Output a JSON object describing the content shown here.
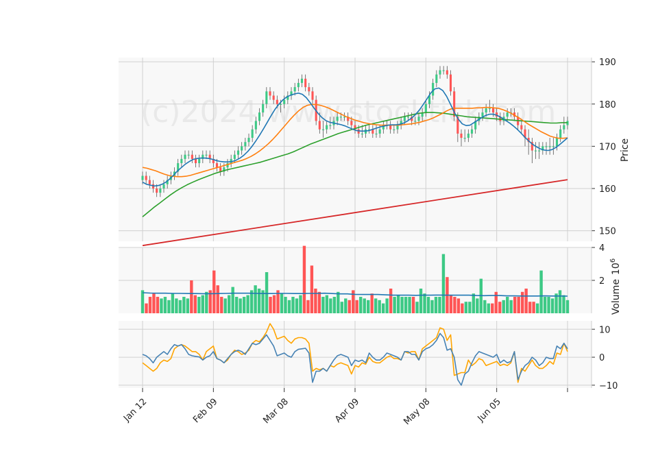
{
  "chart_data": {
    "type": "candlestick",
    "watermark": "(c)2024 www.stocktick.com",
    "colors": {
      "up": "#3dc985",
      "down": "#ff5555",
      "ma_short": "#1f77b4",
      "ma_mid": "#ff7f0e",
      "ma_long": "#2ca02c",
      "ma_200": "#d62728",
      "volume_ma": "#1f77b4",
      "osc_1": "#4682b4",
      "osc_2": "#ffa500",
      "panel_bg": "#f8f8f8",
      "grid": "#d0d0d0"
    },
    "x_axis": {
      "tick_labels": [
        "Jan 12",
        "Feb 09",
        "Mar 08",
        "Apr 09",
        "May 08",
        "Jun 05",
        ""
      ],
      "tick_index": [
        0,
        20,
        40,
        60,
        80,
        100,
        120
      ]
    },
    "price_panel": {
      "ylabel": "Price",
      "ylim": [
        147.5,
        191
      ],
      "yticks": [
        150,
        160,
        170,
        180,
        190
      ],
      "close": [
        163,
        162,
        161,
        160,
        159,
        160,
        161,
        162,
        163,
        164,
        166,
        167,
        168,
        168,
        167,
        166,
        167,
        168,
        168,
        167,
        166,
        165,
        164,
        165,
        166,
        167,
        168,
        169,
        170,
        171,
        172,
        174,
        176,
        178,
        180,
        183,
        182,
        181,
        180,
        180,
        181,
        182,
        183,
        184,
        185,
        186,
        184,
        183,
        181,
        176,
        174,
        174,
        175,
        175,
        176,
        177,
        177,
        177,
        176,
        175,
        174,
        173,
        173,
        174,
        174,
        173,
        173,
        174,
        175,
        175,
        174,
        174,
        175,
        176,
        177,
        177,
        176,
        176,
        177,
        178,
        180,
        182,
        185,
        187,
        188,
        188,
        187,
        183,
        177,
        173,
        172,
        172,
        173,
        174,
        176,
        177,
        178,
        179,
        179,
        178,
        177,
        176,
        177,
        178,
        178,
        177,
        175,
        174,
        172,
        171,
        169,
        169,
        169,
        170,
        170,
        170,
        170,
        172,
        174,
        175,
        176
      ],
      "open": [
        162,
        163,
        162,
        161,
        160,
        159,
        160,
        161,
        162,
        163,
        164,
        166,
        167,
        168,
        168,
        167,
        166,
        167,
        168,
        168,
        167,
        166,
        165,
        164,
        165,
        166,
        167,
        168,
        169,
        170,
        171,
        172,
        174,
        176,
        178,
        180,
        183,
        182,
        181,
        180,
        180,
        181,
        182,
        183,
        184,
        185,
        186,
        184,
        183,
        181,
        176,
        174,
        174,
        175,
        175,
        176,
        177,
        177,
        177,
        176,
        175,
        174,
        173,
        173,
        174,
        174,
        173,
        173,
        174,
        175,
        175,
        174,
        174,
        175,
        176,
        177,
        177,
        176,
        176,
        177,
        178,
        180,
        182,
        185,
        187,
        188,
        188,
        187,
        183,
        177,
        173,
        172,
        172,
        173,
        174,
        176,
        177,
        178,
        179,
        179,
        178,
        177,
        176,
        177,
        178,
        178,
        177,
        175,
        174,
        172,
        171,
        169,
        169,
        169,
        170,
        170,
        170,
        170,
        172,
        174,
        175
      ],
      "high": [
        164,
        164,
        163,
        162,
        161,
        161,
        162,
        163,
        164,
        165,
        167,
        168,
        169,
        169,
        169,
        168,
        168,
        169,
        169,
        169,
        168,
        167,
        166,
        166,
        167,
        168,
        169,
        170,
        171,
        172,
        173,
        175,
        177,
        179,
        181,
        184,
        184,
        183,
        182,
        181,
        182,
        183,
        184,
        185,
        186,
        187,
        187,
        185,
        184,
        182,
        178,
        176,
        176,
        177,
        177,
        178,
        178,
        178,
        178,
        177,
        176,
        175,
        175,
        175,
        175,
        175,
        175,
        175,
        176,
        176,
        176,
        175,
        176,
        177,
        178,
        178,
        178,
        177,
        178,
        179,
        181,
        183,
        186,
        188,
        189,
        189,
        189,
        188,
        184,
        178,
        174,
        174,
        174,
        175,
        177,
        178,
        179,
        180,
        181,
        180,
        179,
        178,
        178,
        179,
        179,
        179,
        178,
        176,
        175,
        174,
        172,
        171,
        171,
        171,
        171,
        172,
        172,
        173,
        175,
        177,
        177
      ],
      "low": [
        161,
        161,
        160,
        159,
        158,
        158,
        159,
        160,
        161,
        162,
        163,
        165,
        166,
        167,
        166,
        165,
        165,
        166,
        167,
        166,
        165,
        164,
        163,
        163,
        164,
        165,
        166,
        167,
        168,
        169,
        170,
        171,
        173,
        175,
        177,
        179,
        181,
        180,
        179,
        178,
        179,
        180,
        181,
        182,
        183,
        184,
        183,
        182,
        180,
        175,
        173,
        172,
        173,
        174,
        174,
        175,
        176,
        176,
        175,
        174,
        173,
        172,
        172,
        172,
        173,
        172,
        172,
        172,
        173,
        174,
        173,
        173,
        173,
        174,
        175,
        176,
        175,
        175,
        175,
        176,
        177,
        179,
        181,
        184,
        186,
        187,
        186,
        182,
        176,
        171,
        170,
        171,
        171,
        172,
        173,
        175,
        176,
        177,
        178,
        177,
        176,
        175,
        175,
        176,
        177,
        176,
        174,
        173,
        170,
        168,
        166,
        167,
        167,
        168,
        168,
        168,
        168,
        169,
        171,
        173,
        174
      ],
      "ma_short": [
        161.5,
        161,
        160.8,
        160.6,
        160.7,
        161,
        161.5,
        162.3,
        163.2,
        164.2,
        165,
        165.8,
        166.4,
        166.9,
        167.1,
        167.2,
        167.2,
        167.1,
        166.9,
        166.6,
        166.4,
        166.3,
        166.3,
        166.4,
        166.7,
        167.2,
        167.9,
        168.8,
        169.9,
        171.2,
        172.6,
        174.1,
        175.7,
        177.3,
        178.8,
        180,
        181,
        181.7,
        182.1,
        182.4,
        182.6,
        182.3,
        181.5,
        180.3,
        179,
        177.8,
        176.8,
        176.1,
        175.7,
        175.5,
        175.3,
        175.1,
        174.8,
        174.4,
        174,
        173.7,
        173.6,
        173.6,
        173.7,
        174,
        174.3,
        174.6,
        174.8,
        175,
        175.1,
        175.1,
        175.2,
        175.5,
        176,
        176.7,
        177.5,
        178.6,
        179.9,
        181.3,
        182.7,
        183.6,
        183.8,
        183.2,
        181.8,
        179.9,
        178,
        176.4,
        175.3,
        174.9,
        175,
        175.6,
        176.2,
        176.8,
        177.3,
        177.6,
        177.6,
        177.3,
        176.8,
        176.2,
        175.6,
        174.9,
        174.1,
        173.2,
        172.2,
        171.3,
        170.5,
        169.9,
        169.4,
        169.1,
        169,
        169.2,
        169.7,
        170.4,
        171.2,
        172
      ],
      "ma_mid": [
        165,
        164.8,
        164.5,
        164.2,
        163.8,
        163.4,
        163.1,
        162.9,
        162.8,
        162.8,
        162.9,
        163.1,
        163.4,
        163.7,
        164,
        164.3,
        164.6,
        164.9,
        165.2,
        165.5,
        165.8,
        166.1,
        166.4,
        166.7,
        167.1,
        167.6,
        168.2,
        168.9,
        169.7,
        170.6,
        171.6,
        172.7,
        173.9,
        175.1,
        176.3,
        177.4,
        178.4,
        179.2,
        179.7,
        179.9,
        179.9,
        179.7,
        179.4,
        179,
        178.5,
        178,
        177.5,
        177,
        176.6,
        176.2,
        175.9,
        175.6,
        175.4,
        175.2,
        175.1,
        175,
        175,
        175,
        175,
        175,
        175.1,
        175.2,
        175.3,
        175.5,
        175.7,
        176,
        176.3,
        176.7,
        177.2,
        177.7,
        178.3,
        178.8,
        179,
        179,
        179,
        179,
        179,
        179.1,
        179.1,
        179.2,
        179.2,
        179.1,
        179,
        178.7,
        178.3,
        177.8,
        177.2,
        176.6,
        175.9,
        175.2,
        174.6,
        174,
        173.4,
        172.9,
        172.4,
        172.1,
        171.9,
        171.9,
        172
      ],
      "ma_long": [
        153.3,
        154.4,
        155.5,
        156.5,
        157.5,
        158.5,
        159.4,
        160.2,
        160.9,
        161.5,
        162.1,
        162.6,
        163.1,
        163.6,
        164,
        164.4,
        164.7,
        165,
        165.3,
        165.6,
        165.9,
        166.2,
        166.6,
        167,
        167.4,
        167.8,
        168.2,
        168.7,
        169.3,
        169.9,
        170.5,
        171,
        171.5,
        172,
        172.5,
        173,
        173.4,
        173.8,
        174.2,
        174.6,
        175,
        175.3,
        175.6,
        175.9,
        176.2,
        176.5,
        176.8,
        177.1,
        177.4,
        177.7,
        177.9,
        178,
        178,
        177.9,
        177.8,
        177.6,
        177.4,
        177.2,
        177,
        176.9,
        176.8,
        176.7,
        176.6,
        176.5,
        176.4,
        176.3,
        176.2,
        176.1,
        176,
        175.9,
        175.8,
        175.7,
        175.6,
        175.5,
        175.5,
        175.6,
        175.6
      ],
      "ma_200": [
        146.5,
        162.1
      ]
    },
    "volume_panel": {
      "ylabel": "Volume",
      "unit_label": "10",
      "unit_exp": "6",
      "ylim": [
        0,
        4
      ],
      "yticks": [
        2,
        4
      ],
      "volume": [
        1.4,
        0.6,
        1.0,
        1.2,
        1.0,
        0.9,
        1.0,
        0.8,
        1.2,
        0.9,
        0.8,
        1.0,
        0.9,
        2.0,
        1.1,
        1.0,
        1.1,
        1.3,
        1.4,
        2.6,
        1.7,
        1.0,
        0.9,
        1.1,
        1.6,
        1.0,
        0.9,
        1.0,
        1.1,
        1.4,
        1.7,
        1.5,
        1.4,
        2.5,
        1.0,
        1.1,
        1.4,
        1.2,
        1.0,
        0.8,
        1.0,
        0.9,
        1.1,
        4.1,
        0.8,
        2.9,
        1.5,
        1.3,
        1.0,
        1.1,
        0.9,
        1.0,
        1.3,
        0.7,
        0.9,
        0.8,
        1.4,
        0.8,
        1.0,
        0.9,
        0.8,
        1.2,
        0.9,
        0.8,
        0.6,
        0.9,
        1.5,
        1.0,
        1.1,
        1.0,
        1.0,
        1.0,
        1.0,
        0.7,
        1.5,
        1.2,
        1.0,
        0.8,
        1.0,
        1.0,
        3.6,
        2.2,
        1.1,
        1.0,
        0.9,
        0.6,
        0.7,
        0.7,
        1.2,
        0.9,
        2.1,
        0.8,
        0.6,
        0.6,
        1.3,
        0.7,
        0.8,
        1.0,
        0.8,
        1.0,
        1.0,
        1.3,
        1.5,
        0.7,
        0.7,
        0.6,
        2.6,
        1.0,
        1.0,
        0.9,
        1.2,
        1.4,
        1.1,
        0.8
      ],
      "volume_ma": [
        1.25,
        1.23,
        1.22,
        1.22,
        1.21,
        1.21,
        1.2,
        1.2,
        1.19,
        1.19,
        1.2,
        1.21,
        1.22,
        1.22,
        1.22,
        1.21,
        1.2,
        1.2,
        1.21,
        1.21,
        1.2,
        1.2,
        1.21,
        1.21,
        1.22,
        1.2,
        1.18,
        1.18,
        1.15,
        1.14,
        1.14,
        1.14,
        1.12,
        1.1,
        1.1,
        1.1,
        1.09,
        1.1,
        1.1,
        1.11,
        1.1,
        1.1,
        1.1,
        1.1,
        1.08,
        1.07,
        1.08,
        1.08,
        1.06,
        1.06,
        1.05,
        1.05,
        1.05,
        1.06,
        1.05,
        1.05,
        1.04
      ]
    },
    "osc_panel": {
      "ylim": [
        -11,
        13
      ],
      "yticks": [
        -10,
        0,
        10
      ],
      "series_1": [
        1,
        0.5,
        -0.5,
        -2,
        0,
        1,
        2,
        1,
        3,
        4.5,
        4,
        4.5,
        3,
        1,
        0.5,
        0.3,
        0.1,
        -1,
        0,
        0.5,
        2,
        -0.5,
        -1,
        -2,
        -0.5,
        1,
        2,
        2.5,
        2,
        1,
        3,
        5,
        4.5,
        5,
        6.5,
        8,
        6,
        4,
        0.5,
        1,
        1.5,
        0.5,
        0,
        2,
        2.8,
        3,
        3.2,
        1.5,
        -9,
        -5,
        -5,
        -4,
        -5,
        -3,
        -1,
        0.5,
        1,
        0.5,
        0,
        -3,
        -1,
        -1.5,
        -1,
        -2,
        1.5,
        0,
        -1,
        -1,
        0,
        1.5,
        1,
        0.5,
        0,
        -1,
        2,
        2,
        1,
        1,
        -1,
        2,
        3,
        3.5,
        4.5,
        6,
        8.5,
        7,
        2.5,
        3,
        0,
        -8,
        -10,
        -6,
        -5,
        -2,
        0.5,
        2,
        1.5,
        1,
        0.5,
        0,
        1,
        -2,
        -1,
        -2,
        -1.5,
        2,
        -8,
        -5,
        -3,
        -2,
        0,
        -1,
        -3,
        -2,
        0,
        -0.5,
        -0.5,
        4,
        3,
        5,
        3
      ],
      "series_2": [
        -2,
        -3,
        -4,
        -5,
        -4,
        -2,
        -1,
        -1.5,
        -0.5,
        3,
        4,
        4.5,
        4,
        3,
        2,
        2,
        1,
        -1,
        2,
        3,
        4,
        -0.5,
        -1,
        -2,
        -1,
        1,
        2.5,
        2,
        1,
        1.5,
        2.5,
        5,
        6,
        5.5,
        7,
        9,
        12,
        10,
        6.5,
        7,
        7.5,
        6,
        5,
        6.5,
        7,
        7,
        6.5,
        5,
        -5,
        -4,
        -4.5,
        -4,
        -5,
        -3,
        -3.5,
        -2.5,
        -2,
        -2.5,
        -3,
        -6,
        -3,
        -3.5,
        -2,
        -2.5,
        0,
        -1.5,
        -2,
        -2,
        -1,
        0,
        0.5,
        -0.5,
        -0.5,
        -1,
        2,
        1.5,
        2,
        2,
        -1,
        3,
        4,
        5,
        6,
        7,
        10.5,
        10,
        6,
        8,
        -6.5,
        -6,
        -5.5,
        -5.5,
        -1,
        -3,
        -2,
        -0.5,
        -1,
        -3,
        -2.5,
        -2,
        -1.5,
        -3,
        -2.5,
        -3,
        -2,
        2,
        -9,
        -4,
        -5,
        -3,
        -1,
        -3,
        -4,
        -4,
        -3,
        -1.5,
        -2.5,
        1.5,
        1,
        5,
        2
      ]
    }
  }
}
